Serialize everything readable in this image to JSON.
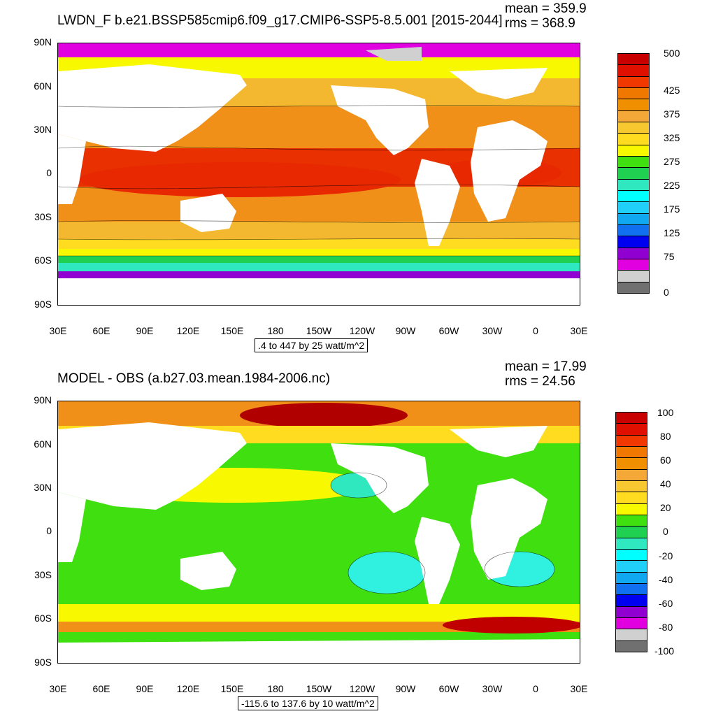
{
  "top": {
    "title": "LWDN_F b.e21.BSSP585cmip6.f09_g17.CMIP6-SSP5-8.5.001 [2015-2044]",
    "mean": "mean = 359.9",
    "rms": "rms = 368.9",
    "range_text": ".4 to 447 by 25 watt/m^2",
    "colorbar_labels": [
      "500",
      "425",
      "375",
      "325",
      "275",
      "225",
      "175",
      "125",
      "75",
      "0"
    ],
    "colorbar_colors": [
      "#c80000",
      "#e01000",
      "#f03800",
      "#f07800",
      "#f09000",
      "#f4a838",
      "#f8c830",
      "#ffdc20",
      "#f8f800",
      "#40e010",
      "#20d050",
      "#30e8c0",
      "#00ffff",
      "#20d0f8",
      "#10a8f0",
      "#1070f0",
      "#0000f0",
      "#9000d0",
      "#e000e0",
      "#d0d0d0",
      "#707070"
    ]
  },
  "bottom": {
    "title": "MODEL - OBS (a.b27.03.mean.1984-2006.nc)",
    "mean": "mean = 17.99",
    "rms": "rms = 24.56",
    "range_text": "-115.6 to 137.6 by 10 watt/m^2",
    "colorbar_labels": [
      "100",
      "80",
      "60",
      "40",
      "20",
      "0",
      "-20",
      "-40",
      "-60",
      "-80",
      "-100"
    ],
    "colorbar_colors": [
      "#c80000",
      "#e01000",
      "#f03800",
      "#f07800",
      "#f09000",
      "#f4a838",
      "#f8c830",
      "#ffdc20",
      "#f8f800",
      "#40e010",
      "#20d050",
      "#30e8c0",
      "#00ffff",
      "#20d0f8",
      "#10a8f0",
      "#1070f0",
      "#0000f0",
      "#9000d0",
      "#e000e0",
      "#d0d0d0",
      "#707070"
    ]
  },
  "axes": {
    "lat_labels": [
      "90N",
      "60N",
      "30N",
      "0",
      "30S",
      "60S",
      "90S"
    ],
    "lon_labels": [
      "30E",
      "60E",
      "90E",
      "120E",
      "150E",
      "180",
      "150W",
      "120W",
      "90W",
      "60W",
      "30W",
      "0",
      "30E"
    ]
  },
  "colors": {
    "red": "#e82800",
    "orange": "#f08a10",
    "light_orange": "#f5b030",
    "yellow": "#ffe000",
    "bright_yellow": "#f8f800",
    "green": "#40e010",
    "cyan": "#30f0d8",
    "blue": "#1070f0",
    "purple": "#9000d0",
    "magenta": "#e000e0",
    "dark_red": "#b00000",
    "land": "#ffffff"
  }
}
